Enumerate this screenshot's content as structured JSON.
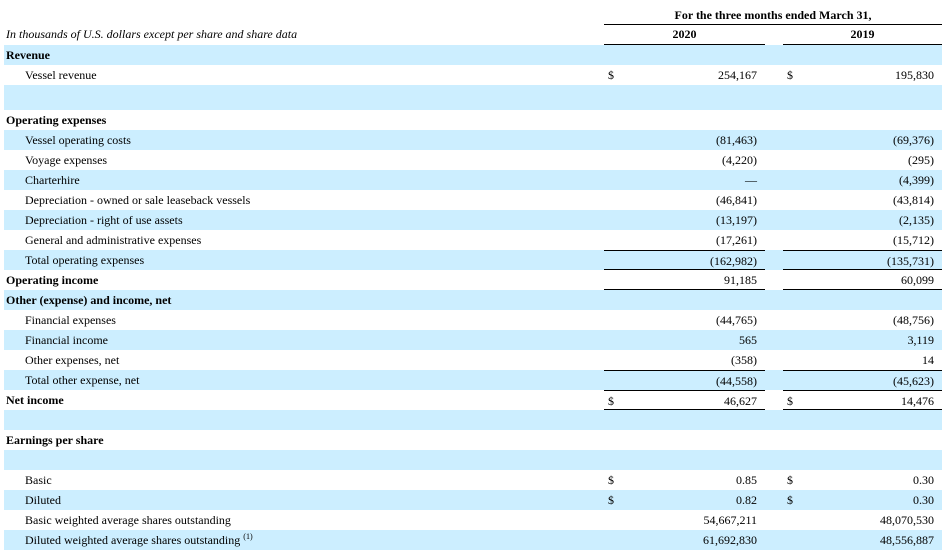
{
  "header": {
    "period_title": "For the three months ended March 31,",
    "caption": "In thousands of U.S. dollars except per share and share data",
    "years": [
      "2020",
      "2019"
    ]
  },
  "rows": [
    {
      "label": "Revenue",
      "bold": true,
      "indent": false,
      "band": true,
      "v2020": "",
      "v2019": "",
      "dollar": false
    },
    {
      "label": "Vessel revenue",
      "bold": false,
      "indent": true,
      "band": false,
      "v2020": "254,167",
      "v2019": "195,830",
      "dollar": true
    },
    {
      "label": "",
      "bold": false,
      "indent": false,
      "band": true,
      "v2020": "",
      "v2019": "",
      "dollar": false
    },
    {
      "label": "Operating expenses",
      "bold": true,
      "indent": false,
      "band": false,
      "v2020": "",
      "v2019": "",
      "dollar": false
    },
    {
      "label": "Vessel operating costs",
      "bold": false,
      "indent": true,
      "band": true,
      "v2020": "(81,463)",
      "v2019": "(69,376)",
      "dollar": false
    },
    {
      "label": "Voyage expenses",
      "bold": false,
      "indent": true,
      "band": false,
      "v2020": "(4,220)",
      "v2019": "(295)",
      "dollar": false
    },
    {
      "label": "Charterhire",
      "bold": false,
      "indent": true,
      "band": true,
      "v2020": "—",
      "v2019": "(4,399)",
      "dollar": false
    },
    {
      "label": "Depreciation - owned or sale leaseback vessels",
      "bold": false,
      "indent": true,
      "band": false,
      "v2020": "(46,841)",
      "v2019": "(43,814)",
      "dollar": false
    },
    {
      "label": "Depreciation - right of use assets",
      "bold": false,
      "indent": true,
      "band": true,
      "v2020": "(13,197)",
      "v2019": "(2,135)",
      "dollar": false
    },
    {
      "label": "General and administrative expenses",
      "bold": false,
      "indent": true,
      "band": false,
      "v2020": "(17,261)",
      "v2019": "(15,712)",
      "dollar": false
    },
    {
      "label": "Total operating expenses",
      "bold": false,
      "indent": true,
      "band": true,
      "v2020": "(162,982)",
      "v2019": "(135,731)",
      "dollar": false
    },
    {
      "label": "Operating income",
      "bold": true,
      "indent": false,
      "band": false,
      "v2020": "91,185",
      "v2019": "60,099",
      "dollar": false
    },
    {
      "label": "Other (expense) and income, net",
      "bold": true,
      "indent": false,
      "band": true,
      "v2020": "",
      "v2019": "",
      "dollar": false
    },
    {
      "label": "Financial expenses",
      "bold": false,
      "indent": true,
      "band": false,
      "v2020": "(44,765)",
      "v2019": "(48,756)",
      "dollar": false
    },
    {
      "label": "Financial income",
      "bold": false,
      "indent": true,
      "band": true,
      "v2020": "565",
      "v2019": "3,119",
      "dollar": false
    },
    {
      "label": "Other expenses, net",
      "bold": false,
      "indent": true,
      "band": false,
      "v2020": "(358)",
      "v2019": "14",
      "dollar": false
    },
    {
      "label": "Total other expense, net",
      "bold": false,
      "indent": true,
      "band": true,
      "v2020": "(44,558)",
      "v2019": "(45,623)",
      "dollar": false
    },
    {
      "label": "Net income",
      "bold": true,
      "indent": false,
      "band": false,
      "v2020": "46,627",
      "v2019": "14,476",
      "dollar": true
    },
    {
      "label": "",
      "bold": false,
      "indent": false,
      "band": true,
      "v2020": "",
      "v2019": "",
      "dollar": false
    },
    {
      "label": "Earnings per share",
      "bold": true,
      "indent": false,
      "band": false,
      "v2020": "",
      "v2019": "",
      "dollar": false
    },
    {
      "label": "",
      "bold": false,
      "indent": false,
      "band": true,
      "v2020": "",
      "v2019": "",
      "dollar": false
    },
    {
      "label": "Basic",
      "bold": false,
      "indent": true,
      "band": false,
      "v2020": "0.85",
      "v2019": "0.30",
      "dollar": true
    },
    {
      "label": "Diluted",
      "bold": false,
      "indent": true,
      "band": true,
      "v2020": "0.82",
      "v2019": "0.30",
      "dollar": true
    },
    {
      "label": "Basic weighted average shares outstanding",
      "bold": false,
      "indent": true,
      "band": false,
      "v2020": "54,667,211",
      "v2019": "48,070,530",
      "dollar": false
    },
    {
      "label": "Diluted weighted average shares outstanding",
      "footnote": "(1)",
      "bold": false,
      "indent": true,
      "band": true,
      "v2020": "61,692,830",
      "v2019": "48,556,887",
      "dollar": false
    }
  ],
  "currency_symbol": "$"
}
